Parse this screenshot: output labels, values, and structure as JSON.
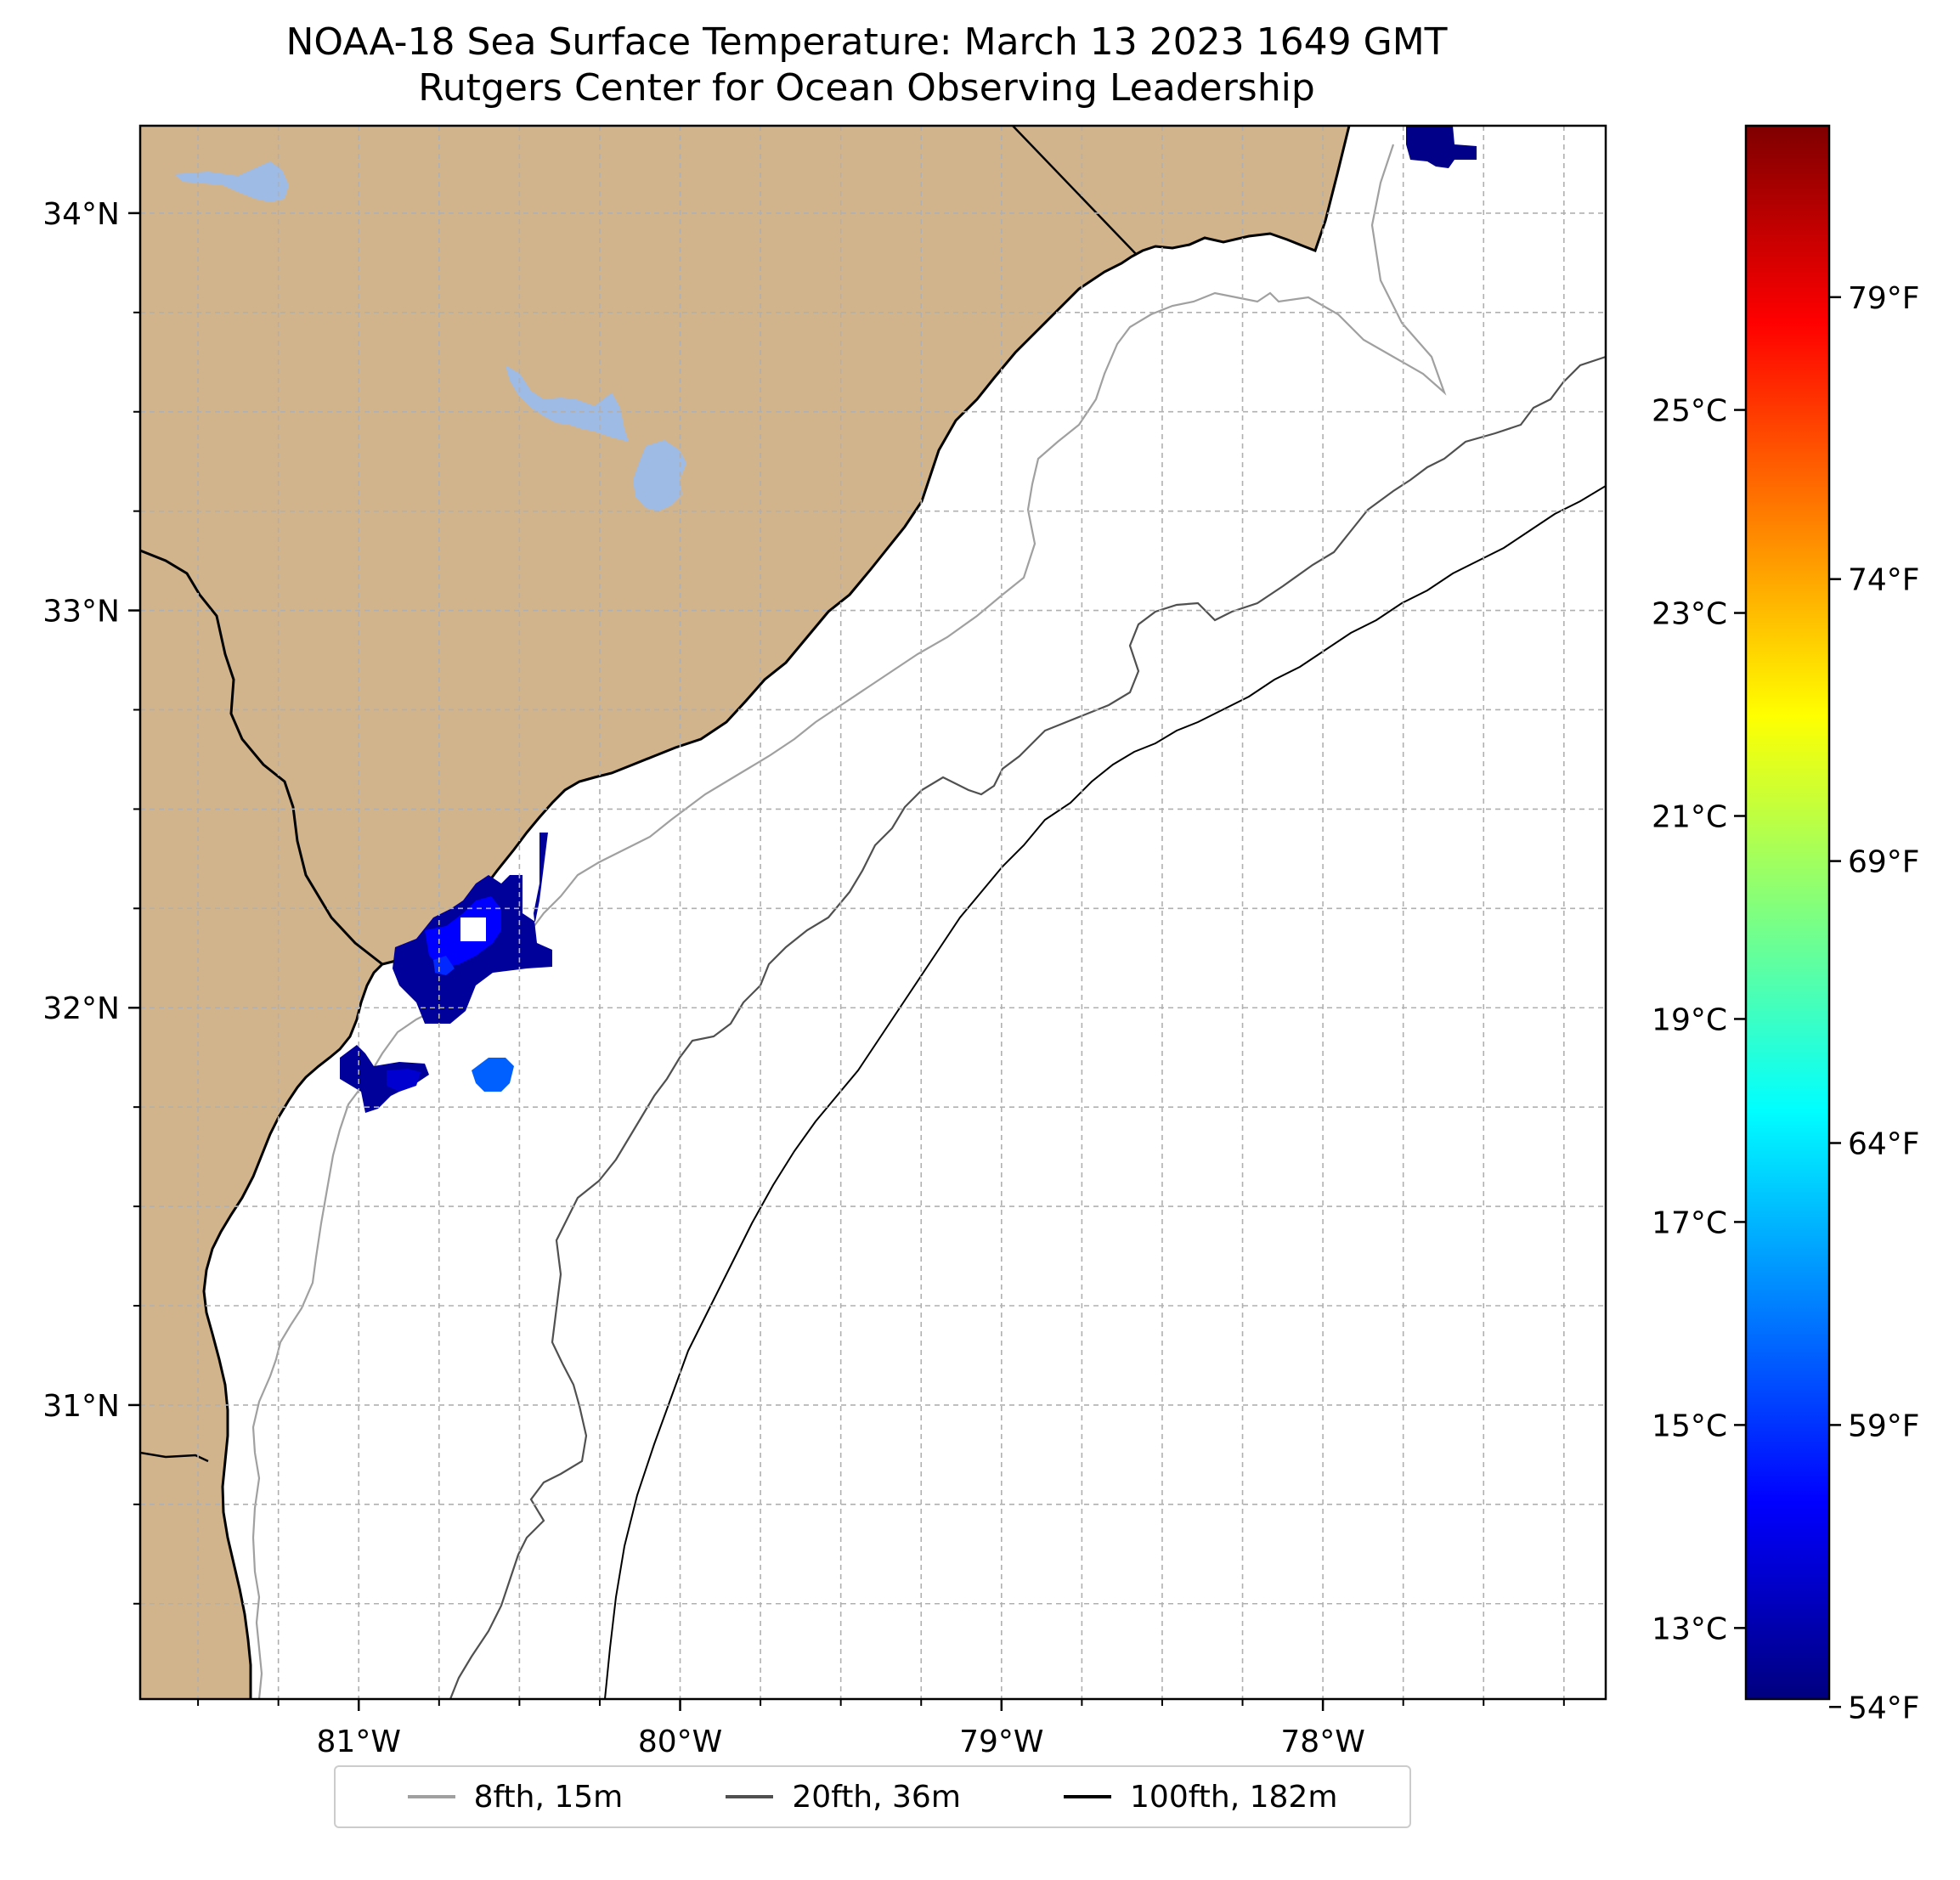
{
  "title": {
    "line1": "NOAA-18 Sea Surface Temperature: March 13 2023 1649 GMT",
    "line2": "Rutgers Center for Ocean Observing Leadership"
  },
  "map": {
    "lon_range": [
      -81.68,
      -77.12
    ],
    "lat_range": [
      30.26,
      34.22
    ],
    "lon_ticks": [
      {
        "value": -81,
        "label": "81°W"
      },
      {
        "value": -80,
        "label": "80°W"
      },
      {
        "value": -79,
        "label": "79°W"
      },
      {
        "value": -78,
        "label": "78°W"
      }
    ],
    "lat_ticks": [
      {
        "value": 34,
        "label": "34°N"
      },
      {
        "value": 33,
        "label": "33°N"
      },
      {
        "value": 32,
        "label": "32°N"
      },
      {
        "value": 31,
        "label": "31°N"
      }
    ],
    "gridlines": true,
    "land_color": "#d2b48c",
    "lake_color": "#9ebbe6",
    "ocean_color": "#ffffff"
  },
  "colorbar": {
    "colormap": "jet",
    "range_c": [
      12.3,
      27.8
    ],
    "celsius_ticks": [
      {
        "value": 13,
        "label": "13°C"
      },
      {
        "value": 15,
        "label": "15°C"
      },
      {
        "value": 17,
        "label": "17°C"
      },
      {
        "value": 19,
        "label": "19°C"
      },
      {
        "value": 21,
        "label": "21°C"
      },
      {
        "value": 23,
        "label": "23°C"
      },
      {
        "value": 25,
        "label": "25°C"
      }
    ],
    "fahrenheit_ticks": [
      {
        "value": 54,
        "label": "54°F"
      },
      {
        "value": 59,
        "label": "59°F"
      },
      {
        "value": 64,
        "label": "64°F"
      },
      {
        "value": 69,
        "label": "69°F"
      },
      {
        "value": 74,
        "label": "74°F"
      },
      {
        "value": 79,
        "label": "79°F"
      }
    ]
  },
  "legend": {
    "items": [
      {
        "label": "8fth, 15m",
        "color": "#a0a0a0"
      },
      {
        "label": "20fth, 36m",
        "color": "#505050"
      },
      {
        "label": "100fth, 182m",
        "color": "#000000"
      }
    ]
  },
  "sst_patches_c": [
    12.6,
    13.4,
    14.8,
    12.8,
    13.2,
    15.6,
    12.5
  ]
}
